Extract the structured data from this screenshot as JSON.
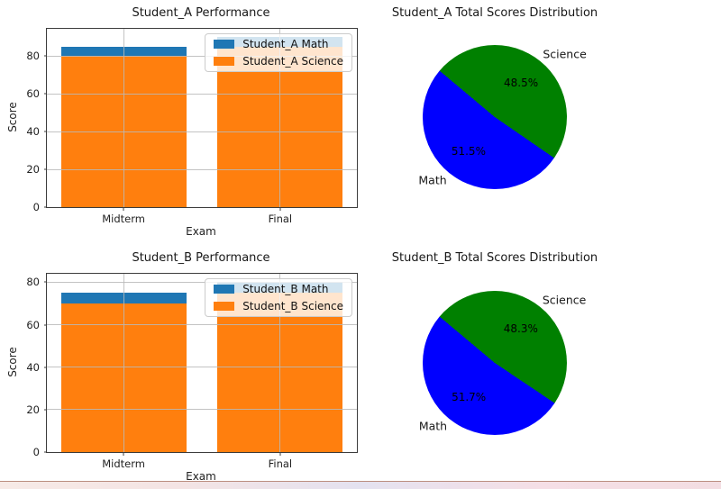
{
  "page": {
    "background": "#ffffff",
    "bottom_strip": {
      "border_color": "#bb8e80",
      "gradient": [
        "#f7eae6",
        "#f4e4e4",
        "#e4e2f0",
        "#f5dfe6",
        "#f3dde2"
      ]
    }
  },
  "chart_data": [
    {
      "type": "bar",
      "position": "top-left",
      "title": "Student_A Performance",
      "xlabel": "Exam",
      "ylabel": "Score",
      "categories": [
        "Midterm",
        "Final"
      ],
      "series": [
        {
          "name": "Student_A Math",
          "color": "#1f77b4",
          "values": [
            85,
            90
          ]
        },
        {
          "name": "Student_A Science",
          "color": "#ff7f0e",
          "values": [
            80,
            85
          ]
        }
      ],
      "bar_style": "overlapping",
      "yticks": [
        0,
        20,
        40,
        60,
        80
      ],
      "ylim": [
        0,
        94.5
      ],
      "grid": true,
      "legend": {
        "position": "upper right",
        "entries": [
          "Student_A Math",
          "Student_A Science"
        ]
      }
    },
    {
      "type": "pie",
      "position": "top-right",
      "title": "Student_A Total Scores Distribution",
      "start_angle": 140,
      "slices": [
        {
          "label": "Math",
          "value_pct": 51.5,
          "pct_label": "51.5%",
          "color": "#0000ff"
        },
        {
          "label": "Science",
          "value_pct": 48.5,
          "pct_label": "48.5%",
          "color": "#008000"
        }
      ]
    },
    {
      "type": "bar",
      "position": "bottom-left",
      "title": "Student_B Performance",
      "xlabel": "Exam",
      "ylabel": "Score",
      "categories": [
        "Midterm",
        "Final"
      ],
      "series": [
        {
          "name": "Student_B Math",
          "color": "#1f77b4",
          "values": [
            75,
            80
          ]
        },
        {
          "name": "Student_B Science",
          "color": "#ff7f0e",
          "values": [
            70,
            75
          ]
        }
      ],
      "bar_style": "overlapping",
      "yticks": [
        0,
        20,
        40,
        60,
        80
      ],
      "ylim": [
        0,
        84
      ],
      "grid": true,
      "legend": {
        "position": "upper right",
        "entries": [
          "Student_B Math",
          "Student_B Science"
        ]
      }
    },
    {
      "type": "pie",
      "position": "bottom-right",
      "title": "Student_B Total Scores Distribution",
      "start_angle": 140,
      "slices": [
        {
          "label": "Math",
          "value_pct": 51.7,
          "pct_label": "51.7%",
          "color": "#0000ff"
        },
        {
          "label": "Science",
          "value_pct": 48.3,
          "pct_label": "48.3%",
          "color": "#008000"
        }
      ]
    }
  ]
}
